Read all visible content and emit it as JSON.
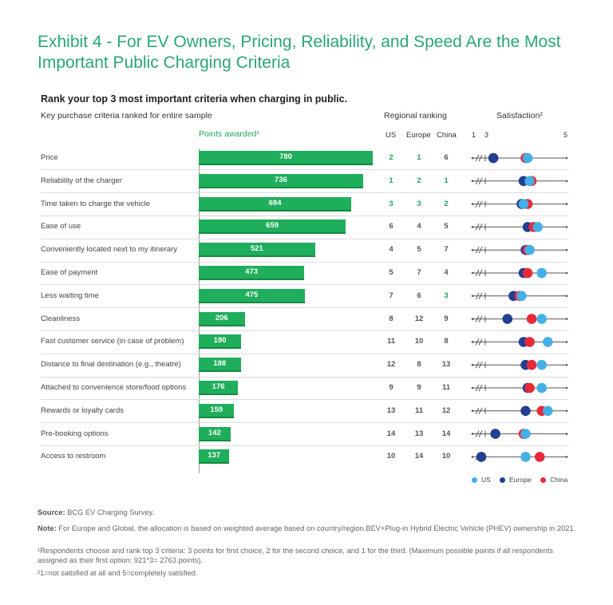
{
  "title": "Exhibit 4 - For EV Owners, Pricing, Reliability, and Speed Are the Most Important Public Charging Criteria",
  "subtitle": "Rank your top 3 most important criteria when charging in public.",
  "headers": {
    "criteria": "Key purchase criteria ranked for entire sample",
    "points": "Points awarded¹",
    "regional": "Regional ranking",
    "us": "US",
    "europe": "Europe",
    "china": "China",
    "satisfaction": "Satisfaction²",
    "scale_1": "1",
    "scale_3": "3",
    "scale_5": "5"
  },
  "legend": {
    "us": "US",
    "europe": "Europe",
    "china": "China"
  },
  "colors": {
    "bar": "#1fae5b",
    "us": "#45b0e6",
    "europe": "#243f8f",
    "china": "#e8293a",
    "title": "#2aa57b"
  },
  "chart_data": {
    "type": "bar",
    "categories": [
      "Price",
      "Reliability of the charger",
      "Time taken to charge the vehicle",
      "Ease of use",
      "Conveniently located next to my itinerary",
      "Ease of payment",
      "Less waiting time",
      "Cleanliness",
      "Fast customer service (in case of problem)",
      "Distance to final destination (e.g., theatre)",
      "Attached to convenience store/food options",
      "Rewards or loyalty cards",
      "Pre-booking options",
      "Access to restroom"
    ],
    "values": [
      780,
      736,
      684,
      659,
      521,
      473,
      475,
      206,
      190,
      188,
      176,
      159,
      142,
      137
    ],
    "rankings": {
      "us": [
        "2",
        "1",
        "3",
        "6",
        "4",
        "5",
        "7",
        "8",
        "11",
        "12",
        "9",
        "13",
        "14",
        "10"
      ],
      "europe": [
        "1",
        "2",
        "3",
        "4",
        "5",
        "7",
        "6",
        "12",
        "10",
        "8",
        "9",
        "11",
        "13",
        "14"
      ],
      "china": [
        "6",
        "1",
        "2",
        "5",
        "7",
        "4",
        "3",
        "9",
        "8",
        "13",
        "11",
        "12",
        "14",
        "10"
      ]
    },
    "top3": {
      "us": [
        true,
        true,
        true,
        false,
        false,
        false,
        false,
        false,
        false,
        false,
        false,
        false,
        false,
        false
      ],
      "europe": [
        true,
        true,
        true,
        false,
        false,
        false,
        false,
        false,
        false,
        false,
        false,
        false,
        false,
        false
      ],
      "china": [
        false,
        true,
        true,
        false,
        false,
        false,
        true,
        false,
        false,
        false,
        false,
        false,
        false,
        false
      ]
    },
    "satisfaction": {
      "us": [
        4.05,
        4.1,
        3.95,
        4.3,
        4.1,
        4.4,
        3.9,
        4.4,
        4.55,
        4.4,
        4.4,
        4.55,
        4.0,
        4.0
      ],
      "europe": [
        3.2,
        3.95,
        3.9,
        4.05,
        4.0,
        3.95,
        3.7,
        3.55,
        3.95,
        4.0,
        4.05,
        4.0,
        3.25,
        2.9
      ],
      "china": [
        4.0,
        4.15,
        4.05,
        4.2,
        4.05,
        4.05,
        3.85,
        4.15,
        4.1,
        4.15,
        4.1,
        4.4,
        3.95,
        4.35
      ]
    },
    "satisfaction_range": [
      1,
      5
    ]
  },
  "footnotes": {
    "source_label": "Source:",
    "source_text": "BCG EV Charging Survey.",
    "note_label": "Note:",
    "note_text": "For Europe and Global, the allocation is based on weighted average based on country/region BEV+Plug-in Hybrid Electric Vehicle (PHEV) ownership in 2021.",
    "fn1": "¹Respondents choose and rank top 3 criteria: 3 points for first choice, 2 for the second choice, and 1 for the third. (Maximum possible points if all respondents assigned as their first option: 921*3= 2763 points).",
    "fn2": "²1=not satisfied at all and 5=completely satisfied."
  }
}
